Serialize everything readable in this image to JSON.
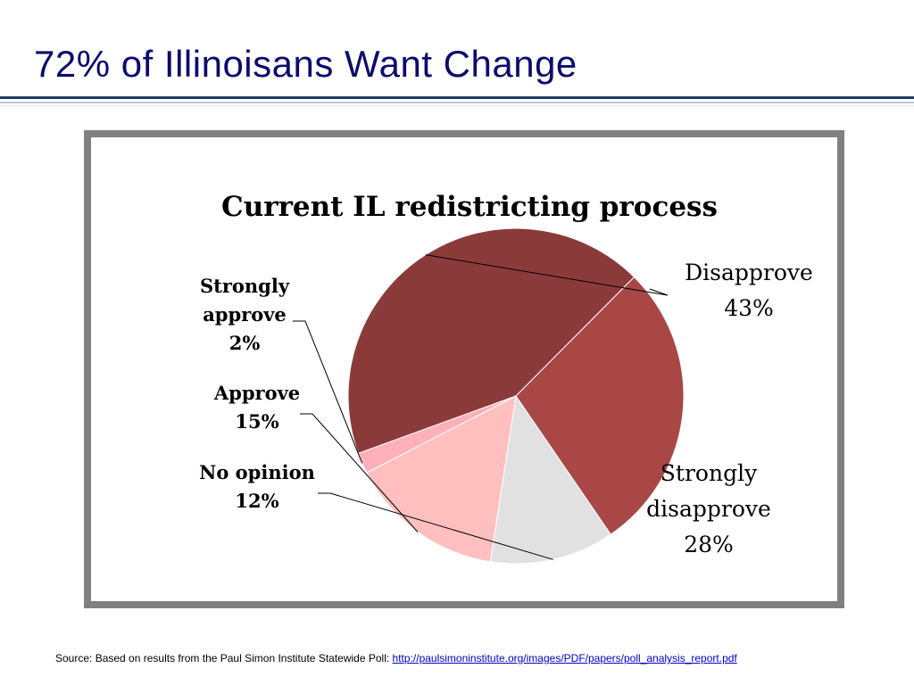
{
  "slide": {
    "title": "72% of Illinoisans Want Change"
  },
  "colors": {
    "title": "#0b0b6e",
    "frame": "#808080",
    "rule": "#1f3a68"
  },
  "chart_data": {
    "type": "pie",
    "title": "Current IL redistricting process",
    "slices": [
      {
        "label_lines": [
          "Disapprove",
          "43%"
        ],
        "value": 43,
        "color": "#8b3a3a",
        "bold": false
      },
      {
        "label_lines": [
          "Strongly",
          "disapprove",
          "28%"
        ],
        "value": 28,
        "color": "#a94646",
        "bold": false
      },
      {
        "label_lines": [
          "No opinion",
          "12%"
        ],
        "value": 12,
        "color": "#e1e1e1",
        "bold": true
      },
      {
        "label_lines": [
          "Approve",
          "15%"
        ],
        "value": 15,
        "color": "#ffbfbf",
        "bold": true
      },
      {
        "label_lines": [
          "Strongly",
          "approve",
          "2%"
        ],
        "value": 2,
        "color": "#ffb0b8",
        "bold": true
      }
    ],
    "start_angle_deg": 250,
    "direction": "clockwise",
    "legend": "none"
  },
  "source": {
    "prefix": "Source: Based on results from the Paul Simon Institute Statewide Poll:",
    "link_text": "http://paulsimoninstitute.org/images/PDF/papers/poll_analysis_report.pdf"
  }
}
